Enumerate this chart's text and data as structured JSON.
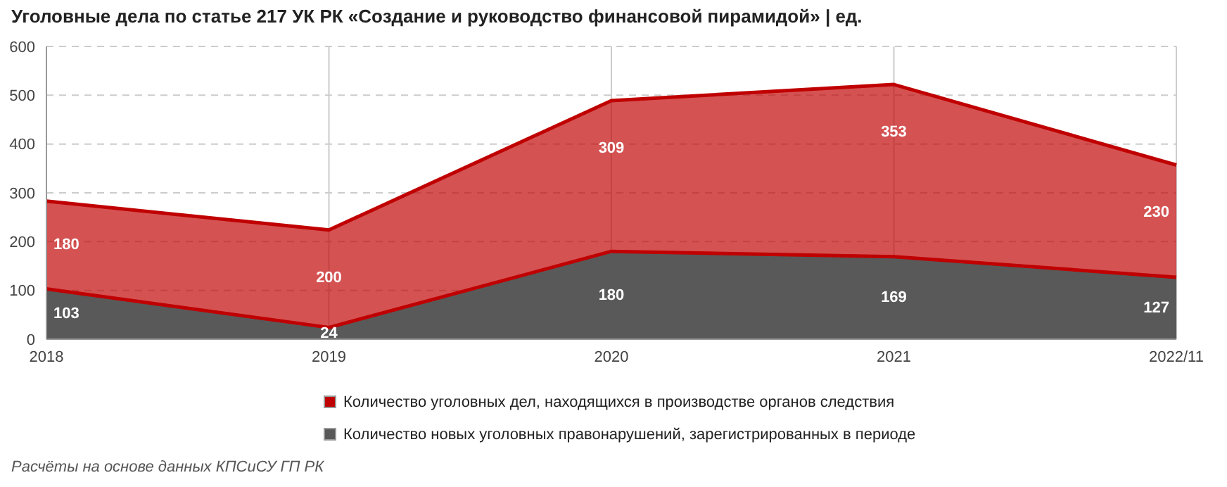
{
  "chart_data": {
    "type": "area",
    "title": "Уголовные дела по статье 217 УК РК «Создание и руководство финансовой пирамидой» | ед.",
    "categories": [
      "2018",
      "2019",
      "2020",
      "2021",
      "2022/11"
    ],
    "stacked": true,
    "series": [
      {
        "name": "Количество новых уголовных правонарушений, зарегистрированных в периоде",
        "color": "#595959",
        "values": [
          103,
          24,
          180,
          169,
          127
        ]
      },
      {
        "name": "Количество уголовных дел, находящихся в производстве органов следствия",
        "color": "#c00000",
        "values": [
          180,
          200,
          309,
          353,
          230
        ]
      }
    ],
    "ylim": [
      0,
      600
    ],
    "yticks": [
      0,
      100,
      200,
      300,
      400,
      500,
      600
    ],
    "grid": true,
    "legend": "bottom",
    "data_labels": true,
    "annotations": [
      "Расчёты на основе данных КПСиСУ ГП РК"
    ]
  }
}
